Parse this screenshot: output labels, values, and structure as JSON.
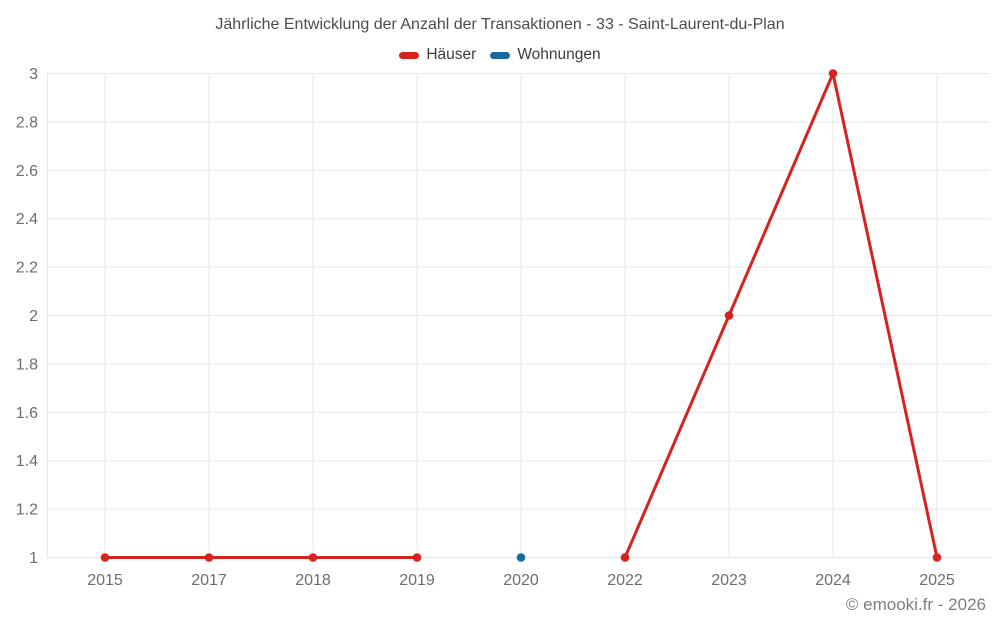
{
  "chart_data": {
    "type": "line",
    "title": "Jährliche Entwicklung der Anzahl der Transaktionen - 33 - Saint-Laurent-du-Plan",
    "categories": [
      "2015",
      "2017",
      "2018",
      "2019",
      "2020",
      "2022",
      "2023",
      "2024",
      "2025"
    ],
    "series": [
      {
        "name": "Häuser",
        "color": "#d7231f",
        "values": [
          1,
          1,
          1,
          1,
          null,
          1,
          2,
          3,
          1
        ]
      },
      {
        "name": "Wohnungen",
        "color": "#17699f",
        "values": [
          null,
          null,
          null,
          null,
          1,
          null,
          null,
          null,
          null
        ]
      }
    ],
    "ylim": [
      1,
      3
    ],
    "ytick_step": 0.2,
    "ytick_labels": [
      "1",
      "1.2",
      "1.4",
      "1.6",
      "1.8",
      "2",
      "2.2",
      "2.4",
      "2.6",
      "2.8",
      "3"
    ],
    "xlabel": "",
    "ylabel": "",
    "grid": true,
    "legend_position": "top"
  },
  "watermark": "© emooki.fr - 2026",
  "colors": {
    "background": "#ffffff",
    "grid": "#e8e8e8",
    "axis_text": "#6d6d6d",
    "title_text": "#4c4c4c",
    "legend_text": "#3d3d3d",
    "watermark_text": "#7e7e7e"
  }
}
